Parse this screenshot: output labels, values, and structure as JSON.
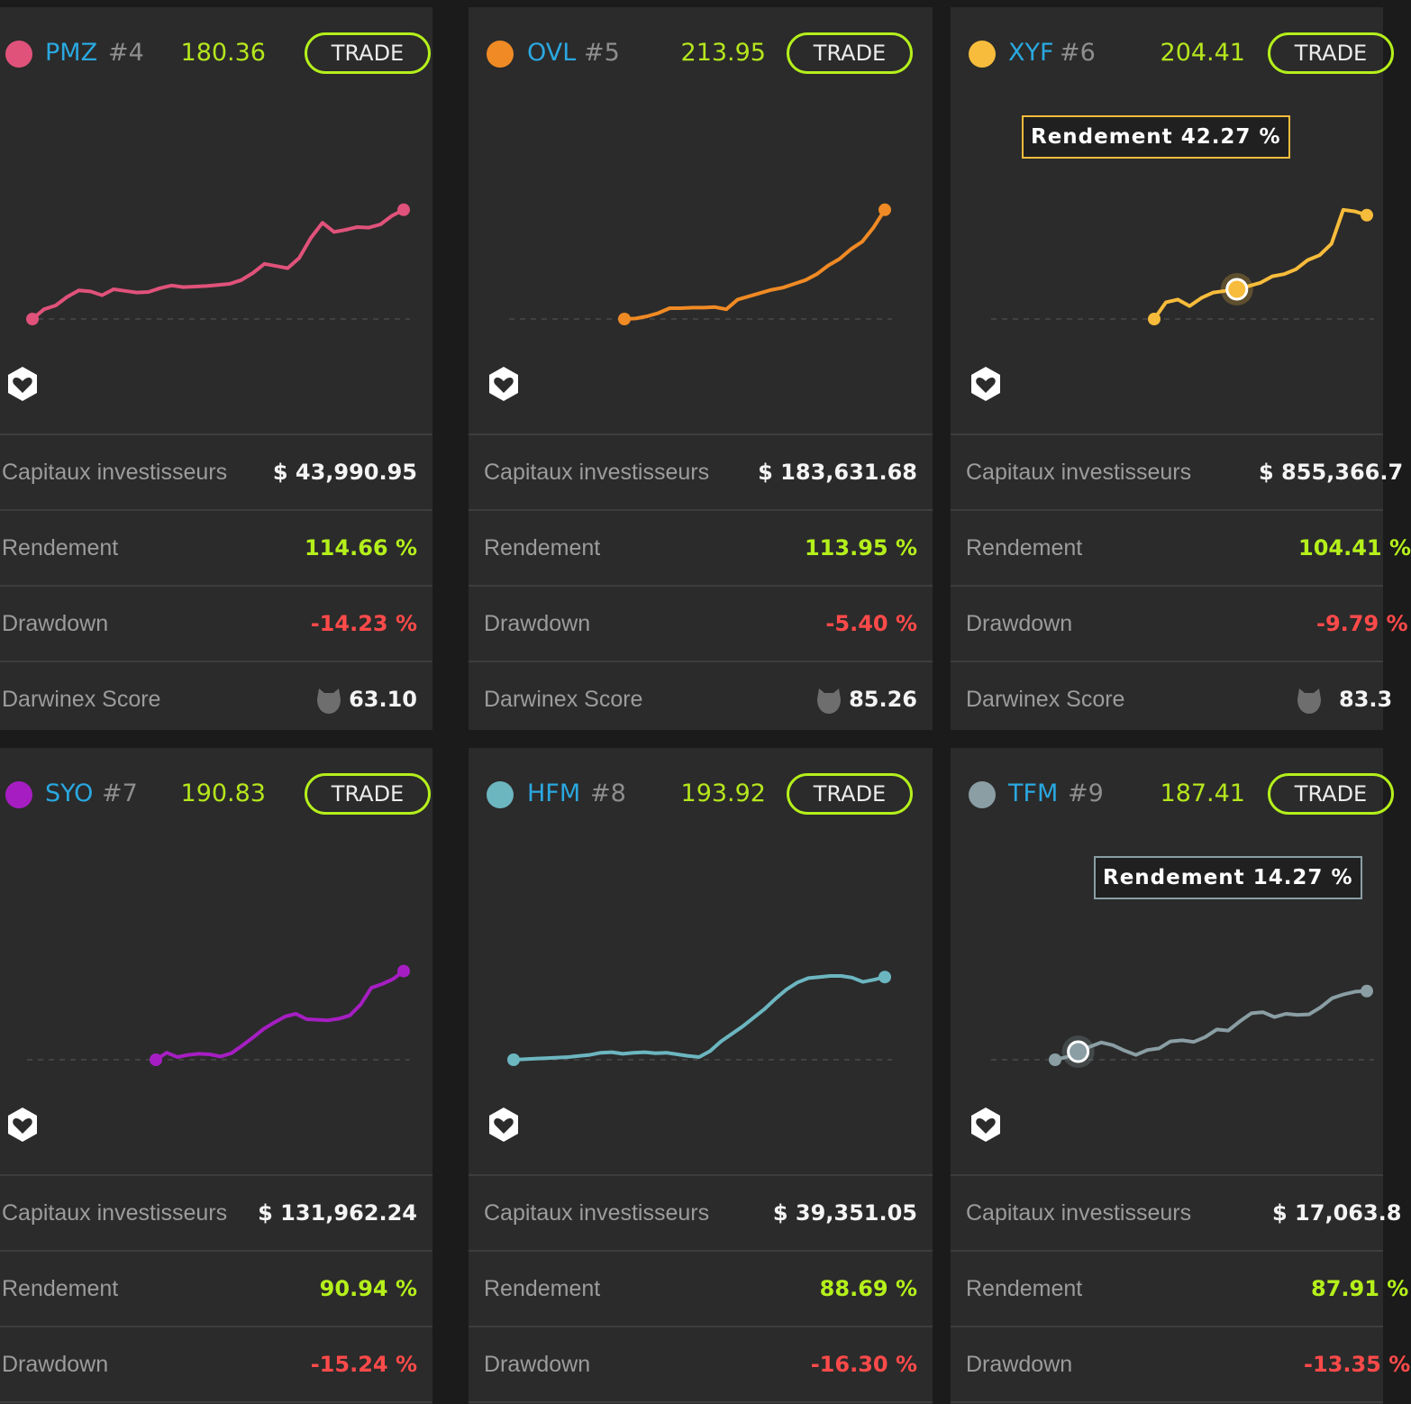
{
  "labels": {
    "trade": "TRADE",
    "capital": "Capitaux investisseurs",
    "return": "Rendement",
    "drawdown": "Drawdown",
    "score": "Darwinex Score"
  },
  "cards": [
    {
      "ticker": "PMZ",
      "rank": "#4",
      "price": "180.36",
      "color": "#e0527a",
      "capital": "$ 43,990.95",
      "return": "114.66 %",
      "drawdown": "-14.23 %",
      "score": "63.10",
      "icon": "heart-shield-icon",
      "score_icon": "owl-icon",
      "series": [
        0,
        1.8,
        2.5,
        4.1,
        5.3,
        5.1,
        4.4,
        5.5,
        5.2,
        4.9,
        5.0,
        5.7,
        6.2,
        5.9,
        6.0,
        6.1,
        6.3,
        6.5,
        7.2,
        8.5,
        10.2,
        9.8,
        9.4,
        11.3,
        15.0,
        17.8,
        16.1,
        16.5,
        17.0,
        16.9,
        17.5,
        19.1,
        20.2
      ]
    },
    {
      "ticker": "OVL",
      "rank": "#5",
      "price": "213.95",
      "color": "#f08a24",
      "capital": "$ 183,631.68",
      "return": "113.95 %",
      "drawdown": "-5.40 %",
      "score": "85.26",
      "icon": "heart-shield-icon",
      "score_icon": "owl-icon",
      "series": [
        0,
        0.1,
        0.5,
        1.1,
        2.0,
        2.0,
        2.1,
        2.1,
        2.2,
        1.8,
        3.6,
        4.2,
        4.8,
        5.4,
        5.8,
        6.5,
        7.2,
        8.3,
        9.9,
        11.1,
        12.9,
        14.3,
        16.9,
        20.2
      ]
    },
    {
      "ticker": "XYF",
      "rank": "#6",
      "price": "204.41",
      "color": "#f7bc3b",
      "capital": "$ 855,366.7",
      "return": "104.41 %",
      "drawdown": "-9.79 %",
      "score": "83.3",
      "icon": "heart-shield-icon",
      "score_icon": "owl-icon",
      "tooltip": "Rendement 42.27 %",
      "series": [
        0,
        3.1,
        3.6,
        2.4,
        3.9,
        4.9,
        5.2,
        5.5,
        6.1,
        6.7,
        7.9,
        8.3,
        9.2,
        10.9,
        11.8,
        13.9,
        20.2,
        19.9,
        19.2
      ]
    },
    {
      "ticker": "SYO",
      "rank": "#7",
      "price": "190.83",
      "color": "#a61ec2",
      "capital": "$ 131,962.24",
      "return": "90.94 %",
      "drawdown": "-15.24 %",
      "score": "",
      "icon": "heart-shield-icon",
      "series": [
        0,
        1.3,
        0.5,
        0.9,
        1.1,
        1.0,
        0.6,
        1.2,
        2.6,
        4.1,
        5.7,
        6.9,
        8.0,
        8.5,
        7.5,
        7.4,
        7.3,
        7.6,
        8.2,
        10.2,
        13.3,
        14.0,
        14.9,
        16.4
      ]
    },
    {
      "ticker": "HFM",
      "rank": "#8",
      "price": "193.92",
      "color": "#6cb6c0",
      "capital": "$ 39,351.05",
      "return": "88.69 %",
      "drawdown": "-16.30 %",
      "score": "",
      "icon": "heart-shield-icon",
      "series": [
        0,
        0.1,
        0.2,
        0.3,
        0.4,
        0.5,
        0.7,
        0.9,
        1.3,
        1.4,
        1.1,
        1.3,
        1.4,
        1.2,
        1.3,
        1.0,
        0.7,
        0.5,
        1.6,
        3.4,
        4.8,
        6.2,
        7.8,
        9.4,
        11.3,
        13.0,
        14.3,
        15.1,
        15.3,
        15.5,
        15.5,
        15.2,
        14.4,
        14.8,
        15.3
      ]
    },
    {
      "ticker": "TFM",
      "rank": "#9",
      "price": "187.41",
      "color": "#8a9ea4",
      "capital": "$ 17,063.8",
      "return": "87.91 %",
      "drawdown": "-13.35 %",
      "score": "",
      "icon": "heart-shield-icon",
      "tooltip": "Rendement 14.27 %",
      "series": [
        0,
        0.5,
        1.5,
        2.4,
        3.2,
        2.7,
        1.7,
        0.9,
        1.8,
        2.1,
        3.4,
        3.6,
        3.3,
        4.2,
        5.6,
        5.4,
        7.1,
        8.6,
        8.8,
        7.9,
        8.5,
        8.3,
        8.4,
        9.7,
        11.4,
        12.1,
        12.6,
        12.7
      ]
    }
  ]
}
